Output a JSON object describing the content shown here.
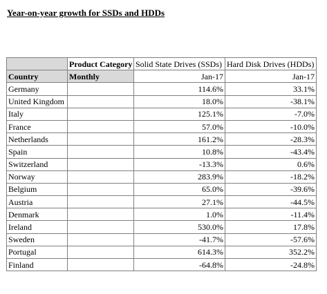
{
  "title": "Year-on-year growth for SSDs and HDDs",
  "table": {
    "header": {
      "product_category_label": "Product Category",
      "ssd_label": "Solid State Drives (SSDs)",
      "hdd_label": "Hard Disk Drives (HDDs)"
    },
    "subheader": {
      "country_label": "Country",
      "frequency_label": "Monthly",
      "ssd_period": "Jan-17",
      "hdd_period": "Jan-17"
    },
    "rows": [
      {
        "country": "Germany",
        "ssd": "114.6%",
        "hdd": "33.1%"
      },
      {
        "country": "United Kingdom",
        "ssd": "18.0%",
        "hdd": "-38.1%"
      },
      {
        "country": "Italy",
        "ssd": "125.1%",
        "hdd": "-7.0%"
      },
      {
        "country": "France",
        "ssd": "57.0%",
        "hdd": "-10.0%"
      },
      {
        "country": "Netherlands",
        "ssd": "161.2%",
        "hdd": "-28.3%"
      },
      {
        "country": "Spain",
        "ssd": "10.8%",
        "hdd": "-43.4%"
      },
      {
        "country": "Switzerland",
        "ssd": "-13.3%",
        "hdd": "0.6%"
      },
      {
        "country": "Norway",
        "ssd": "283.9%",
        "hdd": "-18.2%"
      },
      {
        "country": "Belgium",
        "ssd": "65.0%",
        "hdd": "-39.6%"
      },
      {
        "country": "Austria",
        "ssd": "27.1%",
        "hdd": "-44.5%"
      },
      {
        "country": "Denmark",
        "ssd": "1.0%",
        "hdd": "-11.4%"
      },
      {
        "country": "Ireland",
        "ssd": "530.0%",
        "hdd": "17.8%"
      },
      {
        "country": "Sweden",
        "ssd": "-41.7%",
        "hdd": "-57.6%"
      },
      {
        "country": "Portugal",
        "ssd": "614.3%",
        "hdd": "352.2%"
      },
      {
        "country": "Finland",
        "ssd": "-64.8%",
        "hdd": "-24.8%"
      }
    ]
  },
  "colors": {
    "header_shade": "#d9d9d9",
    "grid_line": "#7f7f7f"
  }
}
